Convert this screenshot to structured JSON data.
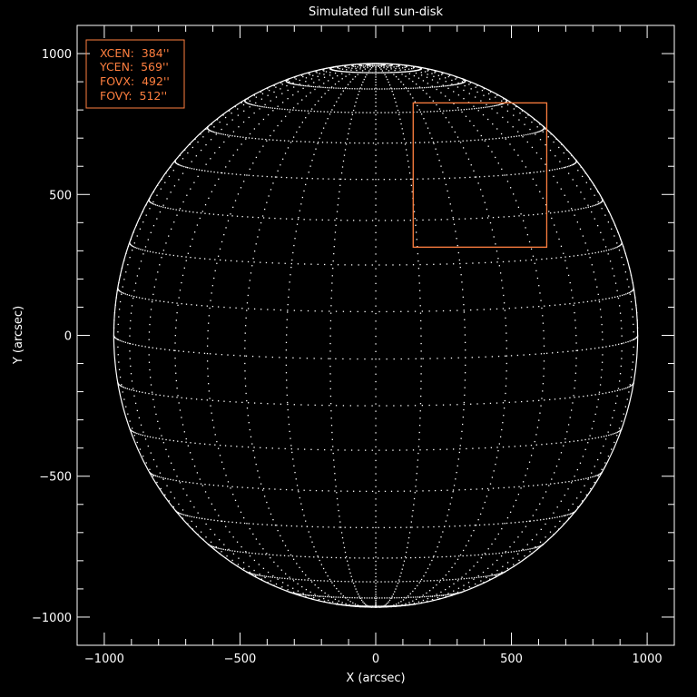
{
  "chart_data": {
    "type": "scatter",
    "title": "Simulated full sun-disk",
    "xlabel": "X (arcsec)",
    "ylabel": "Y (arcsec)",
    "xlim": [
      -1100,
      1100
    ],
    "ylim": [
      -1100,
      1100
    ],
    "xticks": [
      -1000,
      -500,
      0,
      500,
      1000
    ],
    "yticks": [
      -1000,
      -500,
      0,
      500,
      1000
    ],
    "xtick_labels": [
      "−1000",
      "−500",
      "0",
      "500",
      "1000"
    ],
    "ytick_labels": [
      "−1000",
      "−500",
      "0",
      "500",
      "1000"
    ],
    "minor_tick_step": 100,
    "disk_radius_arcsec": 965,
    "grid_spacing_deg": 10,
    "field_of_view": {
      "xcen": 384,
      "ycen": 569,
      "fovx": 492,
      "fovy": 512
    },
    "legend": {
      "placement": "top-left",
      "lines": [
        "XCEN:  384''",
        "YCEN:  569''",
        "FOVX:  492''",
        "FOVY:  512''"
      ]
    },
    "colors": {
      "background": "#000000",
      "axes": "#ffffff",
      "disk": "#ffffff",
      "fov_box": "#ff7f3f"
    }
  }
}
